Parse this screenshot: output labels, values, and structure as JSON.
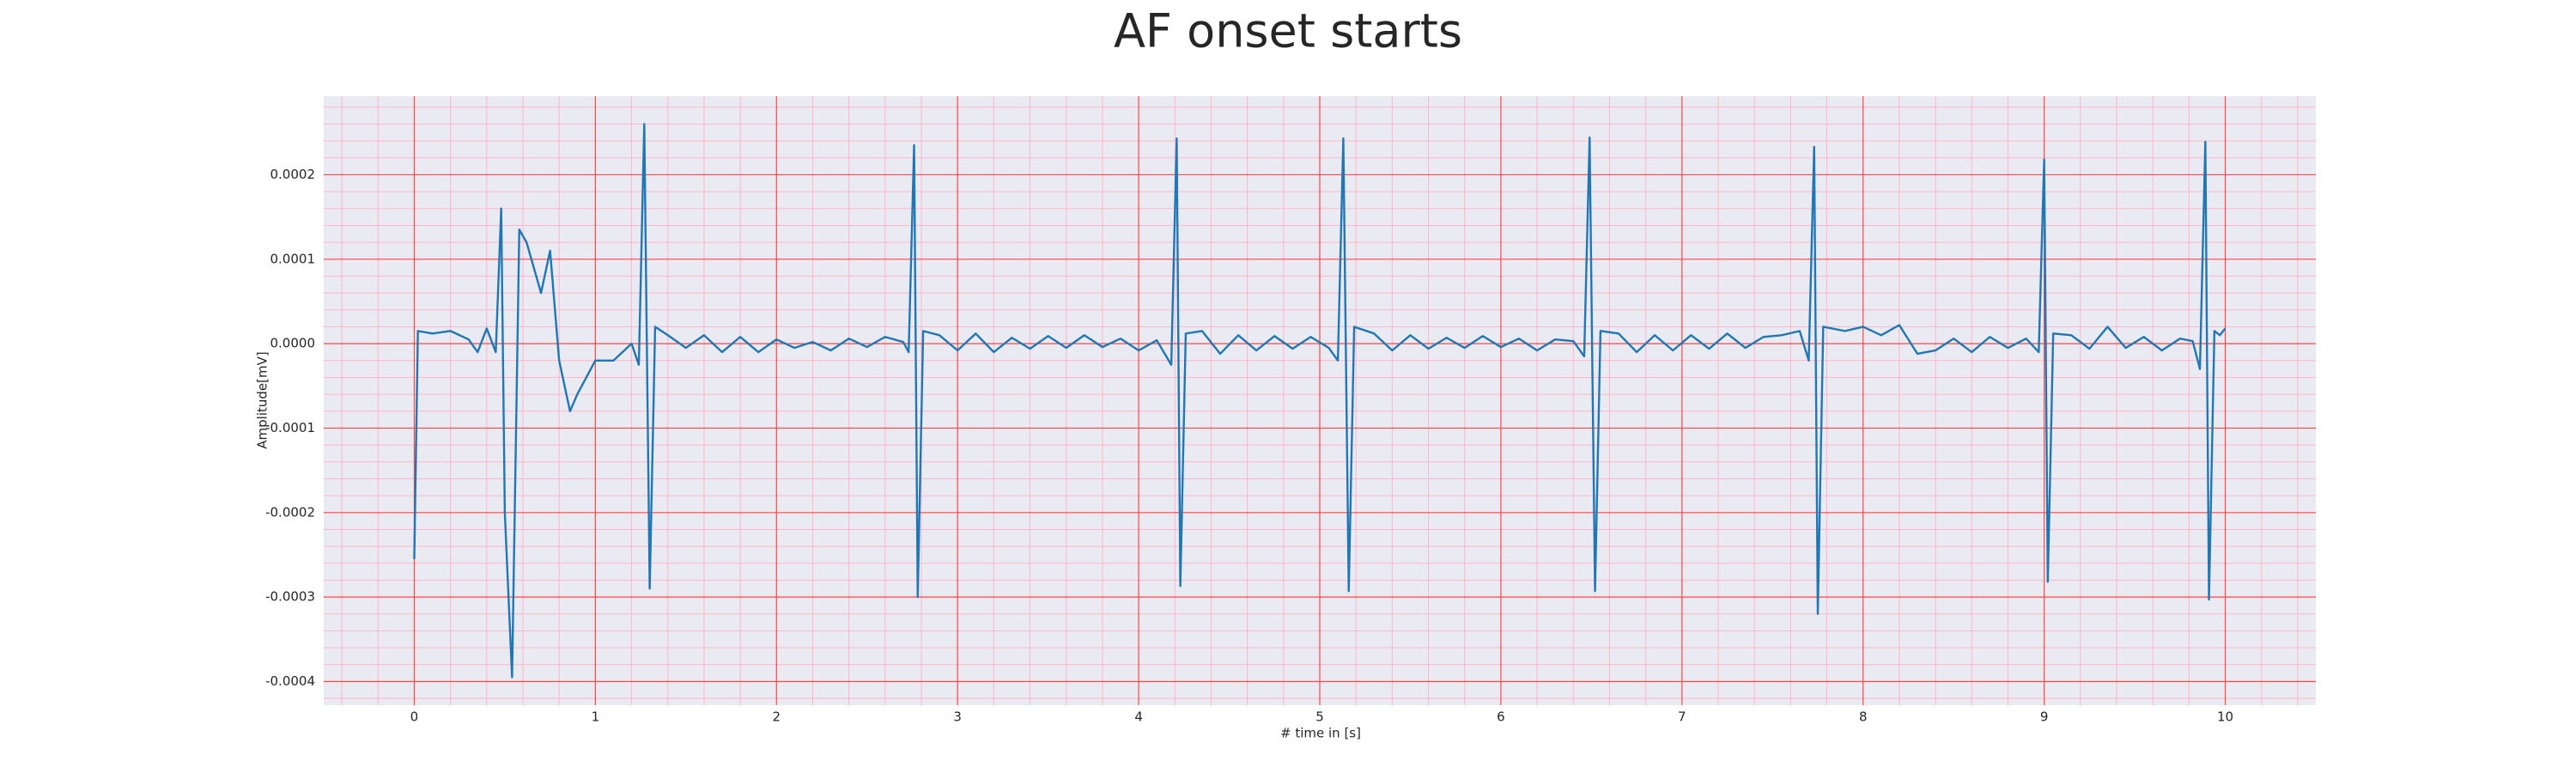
{
  "chart_data": {
    "type": "line",
    "title": "AF onset starts",
    "xlabel": "# time in [s]",
    "ylabel": "Amplitude[mV]",
    "color": "#1f77b4",
    "background": "#eaeaf2",
    "grid": true,
    "grid_color": "#ff4444",
    "minor_grid": true,
    "minor_grid_color": "#ffb6c8",
    "xlim": [
      -0.5,
      10.5
    ],
    "ylim": [
      -0.000428,
      0.000293
    ],
    "xticks": [
      0,
      1,
      2,
      3,
      4,
      5,
      6,
      7,
      8,
      9,
      10
    ],
    "yticks": [
      -0.0004,
      -0.0003,
      -0.0002,
      -0.0001,
      {
        "value": 0,
        "label": "0.0000"
      },
      0.0001,
      0.0002
    ],
    "xminorticks": [
      -0.4,
      -0.2,
      0.2,
      0.4,
      0.6,
      0.8,
      1.2,
      1.4,
      1.6,
      1.8,
      2.2,
      2.4,
      2.6,
      2.8,
      3.2,
      3.4,
      3.6,
      3.8,
      4.2,
      4.4,
      4.6,
      4.8,
      5.2,
      5.4,
      5.6,
      5.8,
      6.2,
      6.4,
      6.6,
      6.8,
      7.2,
      7.4,
      7.6,
      7.8,
      8.2,
      8.4,
      8.6,
      8.8,
      9.2,
      9.4,
      9.6,
      9.8,
      10.2,
      10.4
    ],
    "yminorticks": [
      -0.00042,
      -0.00038,
      -0.00036,
      -0.00034,
      -0.00032,
      -0.00028,
      -0.00026,
      -0.00024,
      -0.00022,
      -0.00018,
      -0.00016,
      -0.00014,
      -0.00012,
      -8e-05,
      -6e-05,
      -4e-05,
      -2e-05,
      2e-05,
      4e-05,
      6e-05,
      8e-05,
      0.00012,
      0.00014,
      0.00016,
      0.00018,
      0.00022,
      0.00024,
      0.00026,
      0.00028
    ],
    "x": [
      0,
      0.02,
      0.1,
      0.2,
      0.3,
      0.35,
      0.4,
      0.45,
      0.48,
      0.5,
      0.54,
      0.58,
      0.62,
      0.7,
      0.75,
      0.8,
      0.86,
      0.9,
      1.0,
      1.1,
      1.2,
      1.24,
      1.27,
      1.3,
      1.33,
      1.4,
      1.5,
      1.6,
      1.7,
      1.8,
      1.9,
      2.0,
      2.1,
      2.2,
      2.3,
      2.4,
      2.5,
      2.6,
      2.7,
      2.73,
      2.76,
      2.78,
      2.81,
      2.9,
      3.0,
      3.1,
      3.2,
      3.3,
      3.4,
      3.5,
      3.6,
      3.7,
      3.8,
      3.9,
      4.0,
      4.1,
      4.18,
      4.21,
      4.23,
      4.26,
      4.35,
      4.45,
      4.55,
      4.65,
      4.75,
      4.85,
      4.95,
      5.05,
      5.1,
      5.13,
      5.16,
      5.19,
      5.3,
      5.4,
      5.5,
      5.6,
      5.7,
      5.8,
      5.9,
      6.0,
      6.1,
      6.2,
      6.3,
      6.4,
      6.46,
      6.49,
      6.52,
      6.55,
      6.65,
      6.75,
      6.85,
      6.95,
      7.05,
      7.15,
      7.25,
      7.35,
      7.45,
      7.55,
      7.65,
      7.7,
      7.73,
      7.75,
      7.78,
      7.9,
      8.0,
      8.1,
      8.2,
      8.3,
      8.4,
      8.5,
      8.6,
      8.7,
      8.8,
      8.9,
      8.97,
      9.0,
      9.02,
      9.05,
      9.15,
      9.25,
      9.35,
      9.45,
      9.55,
      9.65,
      9.75,
      9.82,
      9.86,
      9.89,
      9.91,
      9.94,
      9.97,
      10.0
    ],
    "values": [
      -0.000255,
      1.5e-05,
      1.2e-05,
      1.5e-05,
      5e-06,
      -1e-05,
      1.8e-05,
      -1e-05,
      0.00016,
      -0.0002,
      -0.000395,
      0.000135,
      0.00012,
      6e-05,
      0.00011,
      -2e-05,
      -8e-05,
      -6e-05,
      -2e-05,
      -2e-05,
      0,
      -2.5e-05,
      0.00026,
      -0.00029,
      2e-05,
      1e-05,
      -5e-06,
      1e-05,
      -1e-05,
      8e-06,
      -1e-05,
      5e-06,
      -5e-06,
      2e-06,
      -8e-06,
      6e-06,
      -4e-06,
      8e-06,
      2e-06,
      -1e-05,
      0.000235,
      -0.0003,
      1.5e-05,
      1e-05,
      -8e-06,
      1.2e-05,
      -1e-05,
      7e-06,
      -6e-06,
      9e-06,
      -5e-06,
      1e-05,
      -4e-06,
      6e-06,
      -8e-06,
      4e-06,
      -2.5e-05,
      0.000243,
      -0.000287,
      1.2e-05,
      1.5e-05,
      -1.2e-05,
      1e-05,
      -8e-06,
      9e-06,
      -6e-06,
      8e-06,
      -5e-06,
      -2e-05,
      0.000243,
      -0.000293,
      2e-05,
      1.2e-05,
      -8e-06,
      1e-05,
      -6e-06,
      7e-06,
      -5e-06,
      9e-06,
      -4e-06,
      6e-06,
      -8e-06,
      5e-06,
      3e-06,
      -1.5e-05,
      0.000244,
      -0.000293,
      1.5e-05,
      1.2e-05,
      -1e-05,
      1e-05,
      -8e-06,
      1e-05,
      -6e-06,
      1.2e-05,
      -5e-06,
      8e-06,
      1e-05,
      1.5e-05,
      -2e-05,
      0.000233,
      -0.00032,
      2e-05,
      1.5e-05,
      2e-05,
      1e-05,
      2.2e-05,
      -1.2e-05,
      -8e-06,
      6e-06,
      -1e-05,
      8e-06,
      -5e-06,
      6e-06,
      -1e-05,
      0.000218,
      -0.000282,
      1.2e-05,
      1e-05,
      -6e-06,
      2e-05,
      -5e-06,
      8e-06,
      -8e-06,
      6e-06,
      3e-06,
      -3e-05,
      0.000239,
      -0.000303,
      1.5e-05,
      1e-05,
      1.8e-05
    ]
  }
}
